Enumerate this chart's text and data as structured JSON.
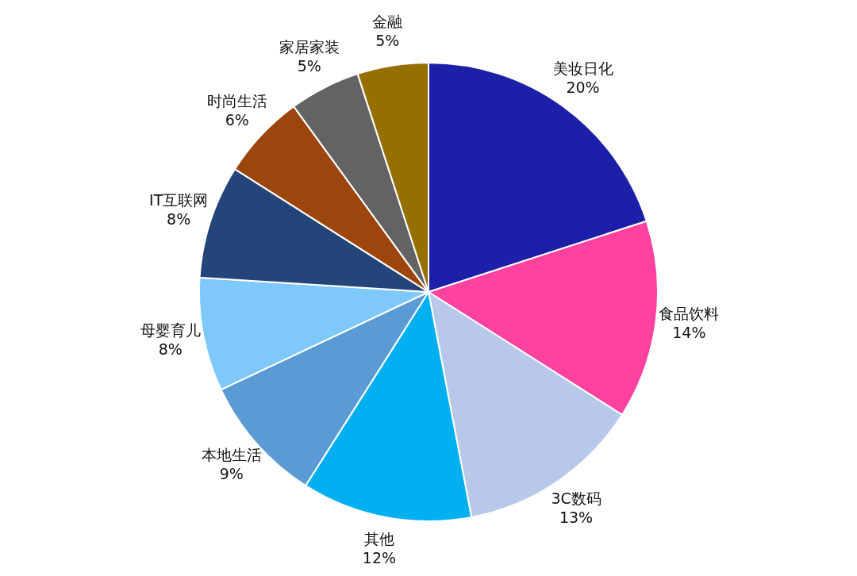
{
  "chart_data": {
    "type": "pie",
    "categories": [
      "美妆日化",
      "食品饮料",
      "3C数码",
      "其他",
      "本地生活",
      "母婴育儿",
      "IT互联网",
      "时尚生活",
      "家居家装",
      "金融"
    ],
    "values": [
      20,
      14,
      13,
      12,
      9,
      8,
      8,
      6,
      5,
      5
    ],
    "value_labels": [
      "20%",
      "14%",
      "13%",
      "12%",
      "9%",
      "8%",
      "8%",
      "6%",
      "5%",
      "5%"
    ],
    "colors": [
      "#1c1fa8",
      "#ff41a0",
      "#b8c8ea",
      "#00b0f0",
      "#5b9bd5",
      "#7fc8fc",
      "#254479",
      "#9c450c",
      "#636363",
      "#957000"
    ],
    "legend": false
  }
}
